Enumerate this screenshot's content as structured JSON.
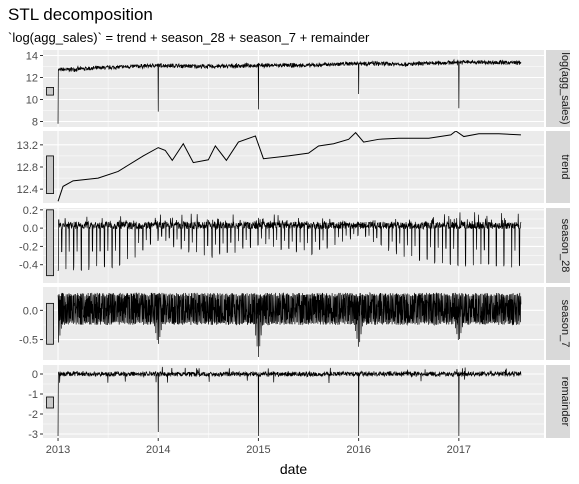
{
  "title": "STL decomposition",
  "subtitle": "`log(agg_sales)` = trend + season_28 + season_7 + remainder",
  "chart_data": {
    "type": "line",
    "xlabel": "date",
    "x_ticks": [
      "2013",
      "2014",
      "2015",
      "2016",
      "2017"
    ],
    "x_tick_values": [
      2013,
      2014,
      2015,
      2016,
      2017
    ],
    "x_range": [
      2012.85,
      2017.85
    ],
    "x_data_range": [
      2013.0,
      2017.62
    ],
    "scale_bar_note": "grey bars at left show equal data range across panels",
    "panels": [
      {
        "name": "log(agg_sales)",
        "strip_label": "log(agg_sales)",
        "ylim": [
          7.5,
          14.5
        ],
        "y_ticks": [
          8,
          10,
          12,
          14
        ],
        "y_tick_labels": [
          "8",
          "10",
          "12",
          "14"
        ],
        "level_points": [
          [
            2013.05,
            12.7
          ],
          [
            2013.5,
            12.9
          ],
          [
            2014.0,
            13.1
          ],
          [
            2014.5,
            13.0
          ],
          [
            2015.0,
            13.1
          ],
          [
            2015.5,
            13.1
          ],
          [
            2016.0,
            13.3
          ],
          [
            2016.5,
            13.2
          ],
          [
            2017.0,
            13.4
          ],
          [
            2017.62,
            13.35
          ]
        ],
        "noise_amp": 0.25,
        "spikes": [
          [
            2013.0,
            7.8
          ],
          [
            2014.0,
            8.9
          ],
          [
            2015.0,
            9.1
          ],
          [
            2016.0,
            10.5
          ],
          [
            2017.0,
            9.2
          ]
        ],
        "scale_bar": [
          10.4,
          11.1
        ]
      },
      {
        "name": "trend",
        "strip_label": "trend",
        "ylim": [
          12.15,
          13.45
        ],
        "y_ticks": [
          12.4,
          12.8,
          13.2
        ],
        "y_tick_labels": [
          "12.4",
          "12.8",
          "13.2"
        ],
        "points": [
          [
            2013.0,
            12.18
          ],
          [
            2013.05,
            12.45
          ],
          [
            2013.15,
            12.55
          ],
          [
            2013.4,
            12.6
          ],
          [
            2013.6,
            12.72
          ],
          [
            2013.85,
            13.0
          ],
          [
            2014.0,
            13.15
          ],
          [
            2014.07,
            13.1
          ],
          [
            2014.14,
            12.92
          ],
          [
            2014.25,
            13.22
          ],
          [
            2014.35,
            12.88
          ],
          [
            2014.5,
            12.93
          ],
          [
            2014.57,
            13.18
          ],
          [
            2014.68,
            12.92
          ],
          [
            2014.8,
            13.25
          ],
          [
            2014.97,
            13.36
          ],
          [
            2015.05,
            12.95
          ],
          [
            2015.3,
            13.0
          ],
          [
            2015.5,
            13.05
          ],
          [
            2015.6,
            13.18
          ],
          [
            2015.75,
            13.22
          ],
          [
            2015.9,
            13.3
          ],
          [
            2015.97,
            13.42
          ],
          [
            2016.05,
            13.25
          ],
          [
            2016.2,
            13.3
          ],
          [
            2016.4,
            13.32
          ],
          [
            2016.7,
            13.32
          ],
          [
            2016.92,
            13.38
          ],
          [
            2016.97,
            13.47
          ],
          [
            2017.05,
            13.35
          ],
          [
            2017.2,
            13.4
          ],
          [
            2017.4,
            13.4
          ],
          [
            2017.62,
            13.38
          ]
        ],
        "scale_bar": [
          12.32,
          13.0
        ]
      },
      {
        "name": "season_28",
        "strip_label": "season_28",
        "ylim": [
          -0.6,
          0.22
        ],
        "y_ticks": [
          -0.4,
          -0.2,
          0.0,
          0.2
        ],
        "y_tick_labels": [
          "-0.4",
          "-0.2",
          "0.0",
          "0.2"
        ],
        "baseline": 0.03,
        "period_years": 0.0767,
        "trough_envelope": [
          [
            2013.0,
            -0.47
          ],
          [
            2013.6,
            -0.45
          ],
          [
            2014.0,
            -0.15
          ],
          [
            2014.5,
            -0.35
          ],
          [
            2015.0,
            -0.2
          ],
          [
            2015.5,
            -0.3
          ],
          [
            2016.0,
            -0.1
          ],
          [
            2016.5,
            -0.35
          ],
          [
            2017.0,
            -0.42
          ],
          [
            2017.62,
            -0.45
          ]
        ],
        "peak_envelope": [
          [
            2013.0,
            0.08
          ],
          [
            2014.0,
            0.12
          ],
          [
            2015.0,
            0.14
          ],
          [
            2016.0,
            0.08
          ],
          [
            2016.6,
            0.1
          ],
          [
            2017.0,
            0.18
          ],
          [
            2017.62,
            0.15
          ]
        ],
        "scale_bar": [
          -0.52,
          0.2
        ]
      },
      {
        "name": "season_7",
        "strip_label": "season_7",
        "ylim": [
          -0.85,
          0.4
        ],
        "y_ticks": [
          -0.5,
          0.0
        ],
        "y_tick_labels": [
          "-0.5",
          "0.0"
        ],
        "upper": 0.3,
        "lower": -0.25,
        "dips": [
          [
            2013.0,
            -0.6
          ],
          [
            2014.0,
            -0.6
          ],
          [
            2015.0,
            -0.8
          ],
          [
            2016.0,
            -0.65
          ],
          [
            2017.0,
            -0.55
          ]
        ],
        "scale_bar": [
          -0.58,
          0.12
        ]
      },
      {
        "name": "remainder",
        "strip_label": "remainder",
        "ylim": [
          -3.2,
          0.45
        ],
        "y_ticks": [
          -3,
          -2,
          -1,
          0
        ],
        "y_tick_labels": [
          "-3",
          "-2",
          "-1",
          "0"
        ],
        "noise_amp": 0.15,
        "spikes": [
          [
            2013.0,
            -3.1
          ],
          [
            2014.0,
            -2.9
          ],
          [
            2015.0,
            -3.1
          ],
          [
            2016.0,
            -3.1
          ],
          [
            2017.0,
            -3.1
          ]
        ],
        "scale_bar": [
          -1.7,
          -1.15
        ]
      }
    ],
    "colors": {
      "panel_bg": "#ebebeb",
      "strip_bg": "#d9d9d9",
      "grid": "#ffffff",
      "line": "#000000",
      "scale_bar": "#c8c8c8",
      "tick_text": "#4d4d4d"
    }
  }
}
